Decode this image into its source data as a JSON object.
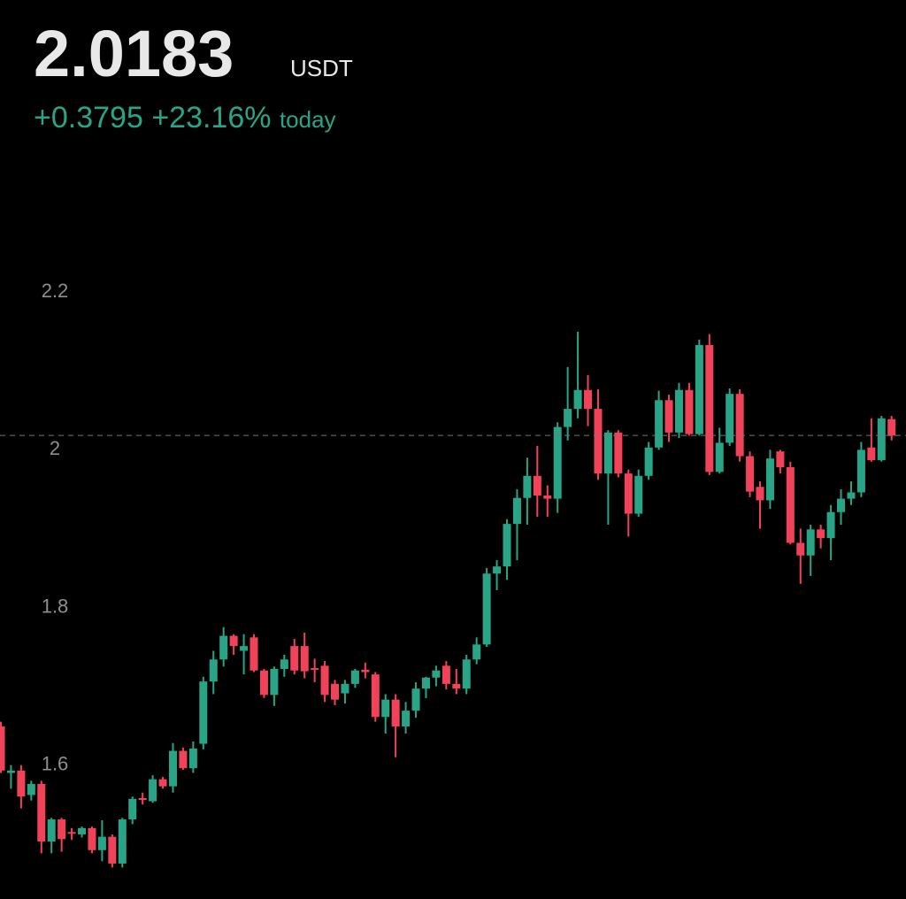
{
  "header": {
    "unit": "USDT",
    "change": "+0.3795",
    "change_pct": "+23.16%",
    "period": "today"
  },
  "chart_data": {
    "type": "candlestick",
    "last_price": 2.0183,
    "up_color": "#2aa487",
    "down_color": "#f0435a",
    "ylim": [
      1.43,
      2.38
    ],
    "yticks": [
      1.6,
      1.8,
      2,
      2.2
    ],
    "candles": [
      [
        1.649,
        1.655,
        1.59,
        1.593
      ],
      [
        1.59,
        1.6,
        1.57,
        1.593
      ],
      [
        1.593,
        1.6,
        1.545,
        1.56
      ],
      [
        1.562,
        1.58,
        1.555,
        1.576
      ],
      [
        1.576,
        1.58,
        1.488,
        1.503
      ],
      [
        1.503,
        1.533,
        1.488,
        1.531
      ],
      [
        1.531,
        1.533,
        1.49,
        1.506
      ],
      [
        1.515,
        1.52,
        1.505,
        1.513
      ],
      [
        1.512,
        1.522,
        1.508,
        1.52
      ],
      [
        1.52,
        1.522,
        1.488,
        1.492
      ],
      [
        1.492,
        1.53,
        1.478,
        1.509
      ],
      [
        1.509,
        1.512,
        1.47,
        1.475
      ],
      [
        1.475,
        1.533,
        1.47,
        1.531
      ],
      [
        1.531,
        1.56,
        1.525,
        1.557
      ],
      [
        1.558,
        1.565,
        1.55,
        1.556
      ],
      [
        1.554,
        1.587,
        1.552,
        1.582
      ],
      [
        1.582,
        1.585,
        1.57,
        1.573
      ],
      [
        1.573,
        1.628,
        1.565,
        1.618
      ],
      [
        1.618,
        1.622,
        1.594,
        1.596
      ],
      [
        1.596,
        1.63,
        1.59,
        1.621
      ],
      [
        1.627,
        1.712,
        1.62,
        1.706
      ],
      [
        1.706,
        1.745,
        1.69,
        1.734
      ],
      [
        1.734,
        1.775,
        1.725,
        1.764
      ],
      [
        1.764,
        1.766,
        1.74,
        1.751
      ],
      [
        1.745,
        1.766,
        1.715,
        1.751
      ],
      [
        1.762,
        1.766,
        1.718,
        1.72
      ],
      [
        1.72,
        1.722,
        1.685,
        1.689
      ],
      [
        1.689,
        1.725,
        1.675,
        1.722
      ],
      [
        1.722,
        1.74,
        1.712,
        1.734
      ],
      [
        1.751,
        1.76,
        1.715,
        1.72
      ],
      [
        1.751,
        1.768,
        1.71,
        1.719
      ],
      [
        1.723,
        1.735,
        1.705,
        1.721
      ],
      [
        1.726,
        1.732,
        1.68,
        1.689
      ],
      [
        1.703,
        1.708,
        1.676,
        1.683
      ],
      [
        1.691,
        1.708,
        1.678,
        1.703
      ],
      [
        1.703,
        1.722,
        1.698,
        1.72
      ],
      [
        1.721,
        1.73,
        1.71,
        1.718
      ],
      [
        1.715,
        1.718,
        1.655,
        1.661
      ],
      [
        1.661,
        1.69,
        1.64,
        1.683
      ],
      [
        1.683,
        1.69,
        1.61,
        1.649
      ],
      [
        1.649,
        1.68,
        1.64,
        1.669
      ],
      [
        1.669,
        1.705,
        1.66,
        1.697
      ],
      [
        1.697,
        1.712,
        1.685,
        1.711
      ],
      [
        1.711,
        1.726,
        1.7,
        1.72
      ],
      [
        1.726,
        1.732,
        1.696,
        1.703
      ],
      [
        1.703,
        1.722,
        1.69,
        1.697
      ],
      [
        1.697,
        1.74,
        1.69,
        1.734
      ],
      [
        1.734,
        1.762,
        1.728,
        1.753
      ],
      [
        1.753,
        1.85,
        1.75,
        1.843
      ],
      [
        1.843,
        1.86,
        1.822,
        1.852
      ],
      [
        1.852,
        1.912,
        1.835,
        1.906
      ],
      [
        1.906,
        1.95,
        1.86,
        1.939
      ],
      [
        1.939,
        1.99,
        1.905,
        1.967
      ],
      [
        1.967,
        2.005,
        1.915,
        1.942
      ],
      [
        1.942,
        1.955,
        1.915,
        1.938
      ],
      [
        1.938,
        2.035,
        1.92,
        2.029
      ],
      [
        2.029,
        2.105,
        2.012,
        2.052
      ],
      [
        2.052,
        2.15,
        2.04,
        2.076
      ],
      [
        2.076,
        2.095,
        2.03,
        2.052
      ],
      [
        2.052,
        2.077,
        1.962,
        1.97
      ],
      [
        1.97,
        2.025,
        1.905,
        2.022
      ],
      [
        2.022,
        2.025,
        1.965,
        1.97
      ],
      [
        1.97,
        1.975,
        1.89,
        1.919
      ],
      [
        1.919,
        1.975,
        1.915,
        1.967
      ],
      [
        1.967,
        2.01,
        1.962,
        2.003
      ],
      [
        2.003,
        2.075,
        2.0,
        2.063
      ],
      [
        2.063,
        2.07,
        2.01,
        2.022
      ],
      [
        2.022,
        2.085,
        2.015,
        2.076
      ],
      [
        2.076,
        2.085,
        2.018,
        2.02
      ],
      [
        2.02,
        2.14,
        2.018,
        2.133
      ],
      [
        2.133,
        2.147,
        1.968,
        1.972
      ],
      [
        1.972,
        2.028,
        1.97,
        2.009
      ],
      [
        2.009,
        2.078,
        2.005,
        2.071
      ],
      [
        2.071,
        2.077,
        1.985,
        1.992
      ],
      [
        1.992,
        1.998,
        1.94,
        1.947
      ],
      [
        1.953,
        1.96,
        1.9,
        1.936
      ],
      [
        1.936,
        2.0,
        1.925,
        1.989
      ],
      [
        1.998,
        2.0,
        1.97,
        1.978
      ],
      [
        1.978,
        1.985,
        1.88,
        1.882
      ],
      [
        1.882,
        1.9,
        1.83,
        1.866
      ],
      [
        1.866,
        1.905,
        1.84,
        1.899
      ],
      [
        1.899,
        1.905,
        1.875,
        1.888
      ],
      [
        1.888,
        1.93,
        1.86,
        1.921
      ],
      [
        1.921,
        1.95,
        1.905,
        1.938
      ],
      [
        1.938,
        1.96,
        1.93,
        1.946
      ],
      [
        1.946,
        2.01,
        1.94,
        2.0
      ],
      [
        2.003,
        2.04,
        1.985,
        1.987
      ],
      [
        1.987,
        2.043,
        1.985,
        2.04
      ],
      [
        2.039,
        2.043,
        2.012,
        2.018
      ]
    ]
  }
}
